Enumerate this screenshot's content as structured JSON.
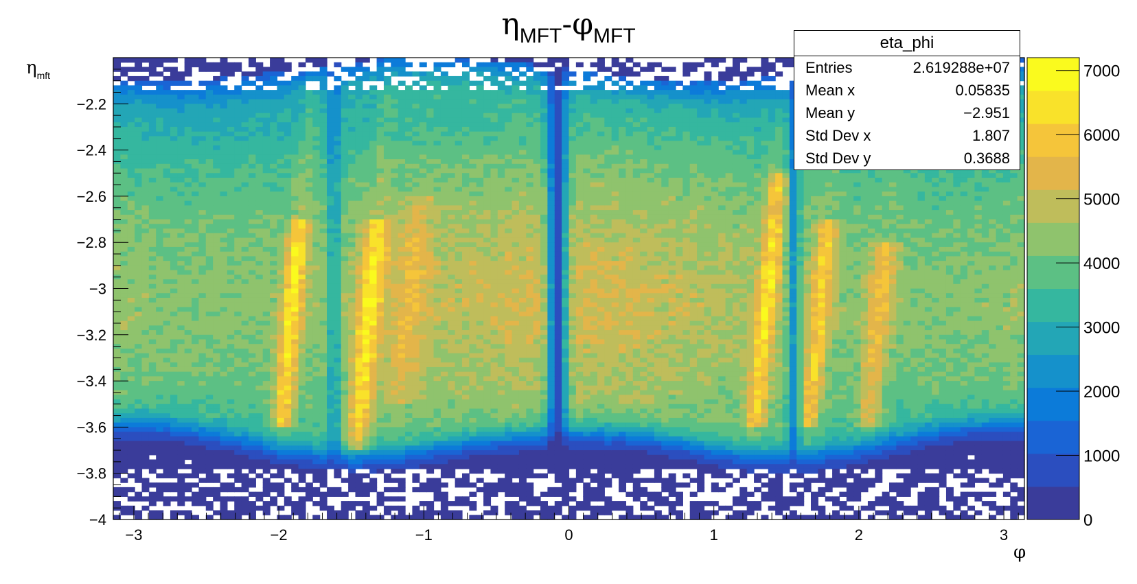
{
  "chart_data": {
    "type": "heatmap",
    "title": {
      "main": "η",
      "sub1": "MFT",
      "sep": "-φ",
      "sub2": "MFT"
    },
    "ylabel": {
      "main": "η",
      "sub": "mft"
    },
    "xlabel": "φ",
    "xlim": [
      -3.1416,
      3.1416
    ],
    "ylim": [
      -4.0,
      -2.0
    ],
    "x_ticks": [
      -3,
      -2,
      -1,
      0,
      1,
      2,
      3
    ],
    "x_tick_labels": [
      "−3",
      "−2",
      "−1",
      "0",
      "1",
      "2",
      "3"
    ],
    "y_ticks": [
      -2.2,
      -2.4,
      -2.6,
      -2.8,
      -3.0,
      -3.2,
      -3.4,
      -3.6,
      -3.8,
      -4.0
    ],
    "y_tick_labels": [
      "−2.2",
      "−2.4",
      "−2.6",
      "−2.8",
      "−3",
      "−3.2",
      "−3.4",
      "−3.6",
      "−3.8",
      "−4"
    ],
    "zlim": [
      0,
      7200
    ],
    "z_ticks": [
      0,
      1000,
      2000,
      3000,
      4000,
      5000,
      6000,
      7000
    ],
    "z_tick_labels": [
      "0",
      "1000",
      "2000",
      "3000",
      "4000",
      "5000",
      "6000",
      "7000"
    ],
    "colormap": [
      "#3a3c9a",
      "#2b4ebf",
      "#1a64d5",
      "#0c7bd9",
      "#1591cb",
      "#23a6b6",
      "#35b79f",
      "#5cc084",
      "#8fc36d",
      "#bfbd5b",
      "#e3b54a",
      "#f5c53a",
      "#f9e22a",
      "#fafa1e"
    ],
    "grid": false,
    "structure_notes": "2D histogram of pseudorapidity vs azimuth; dense band from -3.7 to -2.2; narrow low-count gap at phi ~ -0.1; high-density streaks near phi -2.0, -1.45, 1.3, 1.7, 2.1",
    "stats_box": {
      "title": "eta_phi",
      "rows": [
        {
          "label": "Entries",
          "value": "2.619288e+07"
        },
        {
          "label": "Mean x",
          "value": "0.05835"
        },
        {
          "label": "Mean y",
          "value": "−2.951"
        },
        {
          "label": "Std Dev x",
          "value": "1.807"
        },
        {
          "label": "Std Dev y",
          "value": "0.3688"
        }
      ]
    }
  }
}
